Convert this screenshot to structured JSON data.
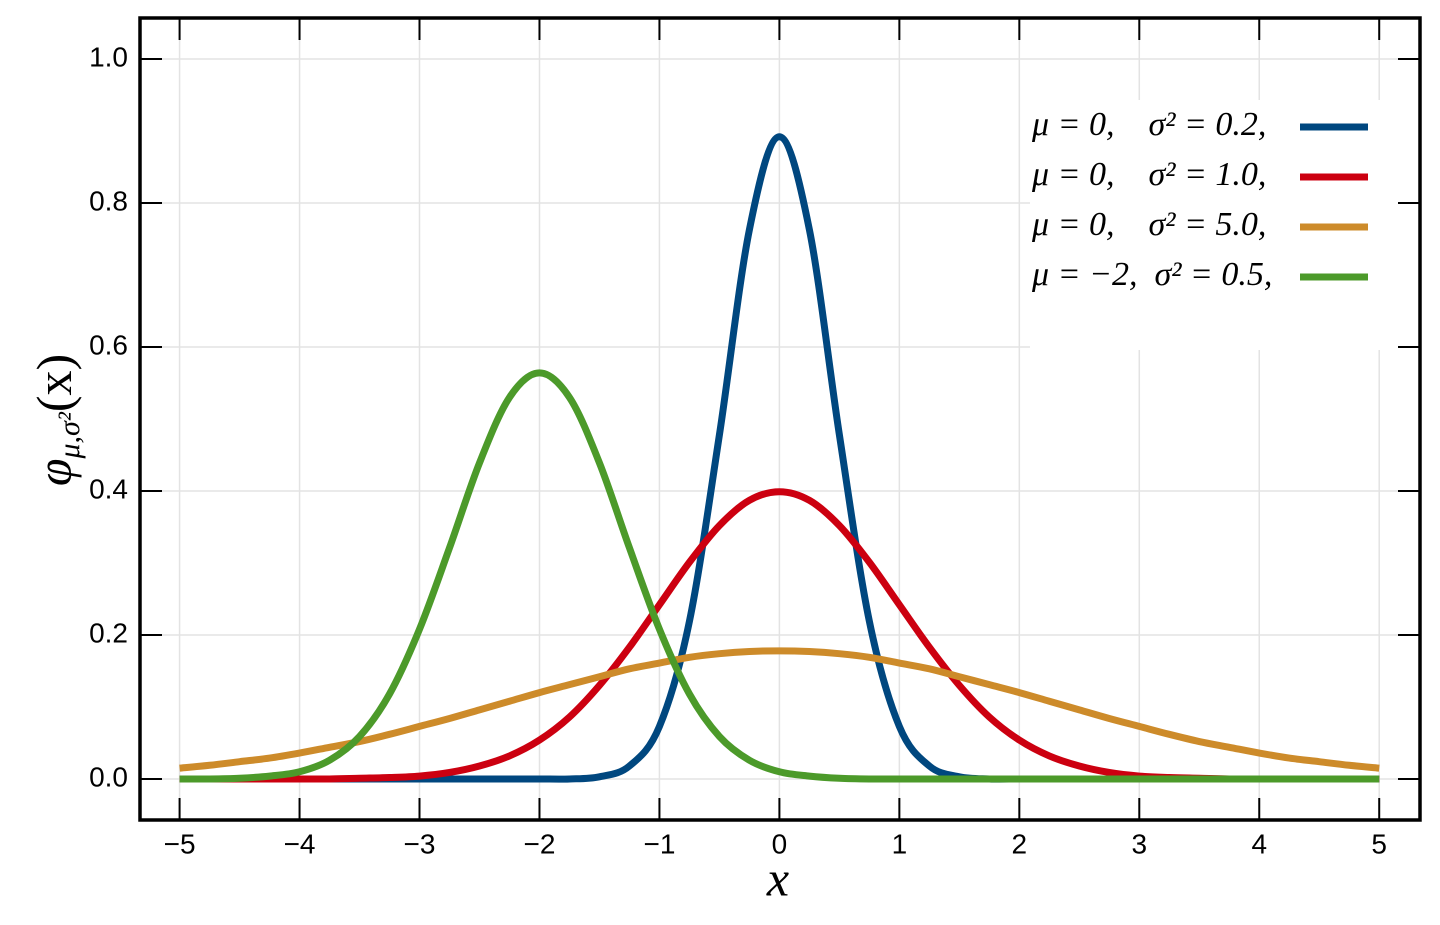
{
  "chart_data": {
    "type": "line",
    "x_label": "x",
    "y_label": {
      "symbol": "φ",
      "subscript": "μ,σ²",
      "argument": "(x)"
    },
    "x": [
      -5,
      -4.75,
      -4.5,
      -4.25,
      -4,
      -3.75,
      -3.5,
      -3.25,
      -3,
      -2.75,
      -2.5,
      -2.25,
      -2,
      -1.75,
      -1.5,
      -1.25,
      -1,
      -0.75,
      -0.5,
      -0.25,
      0,
      0.25,
      0.5,
      0.75,
      1,
      1.25,
      1.5,
      1.75,
      2,
      2.25,
      2.5,
      2.75,
      3,
      3.25,
      3.5,
      3.75,
      4,
      4.25,
      4.5,
      4.75,
      5
    ],
    "series": [
      {
        "name": "μ = 0,    σ² = 0.2,",
        "color": "#00477f",
        "values": [
          0,
          0,
          0,
          0,
          0,
          0,
          0,
          0,
          0,
          0,
          0,
          0,
          0,
          0,
          0.003,
          0.018,
          0.073,
          0.219,
          0.478,
          0.763,
          0.892,
          0.763,
          0.478,
          0.219,
          0.073,
          0.018,
          0.003,
          0,
          0,
          0,
          0,
          0,
          0,
          0,
          0,
          0,
          0,
          0,
          0,
          0,
          0
        ]
      },
      {
        "name": "μ = 0,    σ² = 1.0,",
        "color": "#cc0010",
        "values": [
          0,
          0,
          0,
          0,
          0,
          0,
          0.001,
          0.002,
          0.004,
          0.009,
          0.018,
          0.032,
          0.054,
          0.086,
          0.13,
          0.183,
          0.242,
          0.301,
          0.352,
          0.387,
          0.399,
          0.387,
          0.352,
          0.301,
          0.242,
          0.183,
          0.13,
          0.086,
          0.054,
          0.032,
          0.018,
          0.009,
          0.004,
          0.002,
          0.001,
          0,
          0,
          0,
          0,
          0,
          0
        ]
      },
      {
        "name": "μ = 0,    σ² = 5.0,",
        "color": "#cd8b2a",
        "values": [
          0.015,
          0.019,
          0.024,
          0.029,
          0.036,
          0.044,
          0.052,
          0.062,
          0.073,
          0.084,
          0.096,
          0.108,
          0.12,
          0.131,
          0.142,
          0.153,
          0.161,
          0.169,
          0.174,
          0.177,
          0.178,
          0.177,
          0.174,
          0.169,
          0.161,
          0.153,
          0.142,
          0.131,
          0.12,
          0.108,
          0.096,
          0.084,
          0.073,
          0.062,
          0.052,
          0.044,
          0.036,
          0.029,
          0.024,
          0.019,
          0.015
        ]
      },
      {
        "name": "μ = −2,  σ² = 0.5,",
        "color": "#4c9a2a",
        "values": [
          0,
          0,
          0.001,
          0.004,
          0.01,
          0.026,
          0.059,
          0.118,
          0.208,
          0.321,
          0.439,
          0.53,
          0.564,
          0.53,
          0.439,
          0.321,
          0.208,
          0.118,
          0.059,
          0.026,
          0.01,
          0.004,
          0.001,
          0,
          0,
          0,
          0,
          0,
          0,
          0,
          0,
          0,
          0,
          0,
          0,
          0,
          0,
          0,
          0,
          0,
          0
        ]
      }
    ],
    "xlim": [
      -5.33,
      5.34
    ],
    "ylim": [
      -0.057,
      1.057
    ],
    "xticks": [
      {
        "value": -5,
        "label": "−5"
      },
      {
        "value": -4,
        "label": "−4"
      },
      {
        "value": -3,
        "label": "−3"
      },
      {
        "value": -2,
        "label": "−2"
      },
      {
        "value": -1,
        "label": "−1"
      },
      0,
      1,
      2,
      3,
      4,
      5
    ],
    "yticks": [
      {
        "value": 0,
        "label": "0.0"
      },
      0.2,
      0.4,
      0.6,
      0.8,
      {
        "value": 1,
        "label": "1.0"
      }
    ],
    "grid": true,
    "legend": "upper right"
  }
}
